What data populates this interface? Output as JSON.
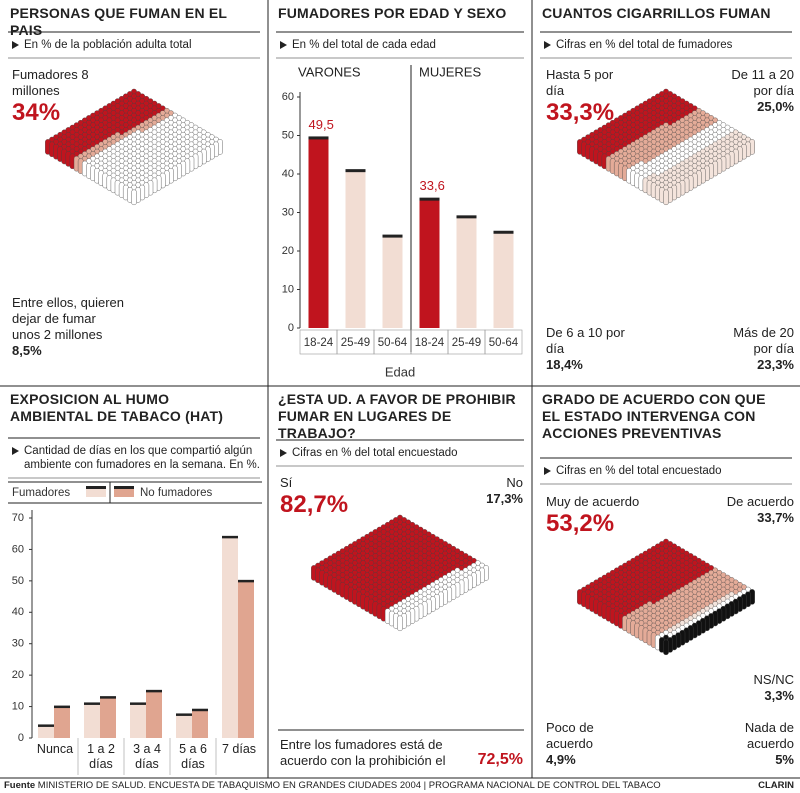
{
  "chart_data": [
    {
      "type": "isometric",
      "title": "PERSONAS QUE FUMAN EN EL PAIS",
      "subtitle": "En % de la población adulta total",
      "categories": [
        "Fumadores 8 millones",
        "Entre ellos, quieren dejar de fumar unos 2 millones"
      ],
      "values": [
        34,
        8.5
      ],
      "value_labels": [
        "34%",
        "8,5%"
      ],
      "colors": [
        "#c0141e",
        "#e4ab98"
      ]
    },
    {
      "type": "grouped_bar",
      "title": "FUMADORES POR EDAD Y SEXO",
      "subtitle": "En % del total de cada edad",
      "xlabel": "Edad",
      "ylim": [
        0,
        60
      ],
      "yticks": [
        0,
        10,
        20,
        30,
        40,
        50,
        60
      ],
      "series": [
        {
          "name": "VARONES",
          "categories": [
            "18-24",
            "25-49",
            "50-64"
          ],
          "values": [
            49.5,
            41,
            24
          ],
          "value_labels": [
            "49,5",
            null,
            null
          ],
          "colors": [
            "#c0141e",
            "#f2ddd3",
            "#f2ddd3"
          ]
        },
        {
          "name": "MUJERES",
          "categories": [
            "18-24",
            "25-49",
            "50-64"
          ],
          "values": [
            33.6,
            29,
            25
          ],
          "value_labels": [
            "33,6",
            null,
            null
          ],
          "colors": [
            "#c0141e",
            "#f2ddd3",
            "#f2ddd3"
          ]
        }
      ]
    },
    {
      "type": "isometric",
      "title": "CUANTOS CIGARRILLOS FUMAN",
      "subtitle": "Cifras en % del total de fumadores",
      "categories": [
        "Hasta 5 por día",
        "De 11 a 20 por día",
        "De 6 a 10 por día",
        "Más de 20 por día"
      ],
      "values": [
        33.3,
        25.0,
        18.4,
        23.3
      ],
      "value_labels": [
        "33,3%",
        "25,0%",
        "18,4%",
        "23,3%"
      ],
      "colors": [
        "#c0141e",
        "#e4ab98",
        "#ffffff",
        "#f4e4dc"
      ]
    },
    {
      "type": "bar",
      "title": "EXPOSICION AL HUMO AMBIENTAL DE TABACO (HAT)",
      "subtitle": "Cantidad de días en los que compartió algún ambiente con fumadores en la semana. En %.",
      "categories": [
        "Nunca",
        "1 a 2 días",
        "3 a 4 días",
        "5 a 6 días",
        "7 días"
      ],
      "ylim": [
        0,
        70
      ],
      "yticks": [
        0,
        10,
        20,
        30,
        40,
        50,
        60,
        70
      ],
      "series": [
        {
          "name": "Fumadores",
          "color": "#f2ddd3",
          "values": [
            4,
            11,
            11,
            7.5,
            64
          ]
        },
        {
          "name": "No fumadores",
          "color": "#e0a590",
          "values": [
            10,
            13,
            15,
            9,
            50
          ]
        }
      ]
    },
    {
      "type": "isometric",
      "title": "¿ESTA UD. A FAVOR DE PROHIBIR FUMAR EN LUGARES DE TRABAJO?",
      "subtitle": "Cifras en % del total encuestado",
      "categories": [
        "Sí",
        "No"
      ],
      "values": [
        82.7,
        17.3
      ],
      "value_labels": [
        "82,7%",
        "17,3%"
      ],
      "colors": [
        "#c0141e",
        "#ffffff"
      ],
      "note": "Entre los fumadores está de acuerdo con la prohibición el",
      "note_value": 72.5,
      "note_value_label": "72,5%"
    },
    {
      "type": "isometric",
      "title": "GRADO DE ACUERDO CON QUE EL ESTADO INTERVENGA CON ACCIONES PREVENTIVAS",
      "subtitle": "Cifras en % del total encuestado",
      "categories": [
        "Muy de acuerdo",
        "De acuerdo",
        "NS/NC",
        "Poco de acuerdo",
        "Nada de acuerdo"
      ],
      "values": [
        53.2,
        33.7,
        3.3,
        4.9,
        5
      ],
      "value_labels": [
        "53,2%",
        "33,7%",
        "3,3%",
        "4,9%",
        "5%"
      ],
      "colors": [
        "#c0141e",
        "#e4ab98",
        "#f4e4dc",
        "#ffffff",
        "#111111"
      ]
    }
  ],
  "footer": {
    "label": "Fuente",
    "source": "MINISTERIO DE SALUD. ENCUESTA DE TABAQUISMO EN GRANDES CIUDADES 2004 | PROGRAMA NACIONAL DE CONTROL DEL TABACO",
    "credit": "CLARIN"
  }
}
